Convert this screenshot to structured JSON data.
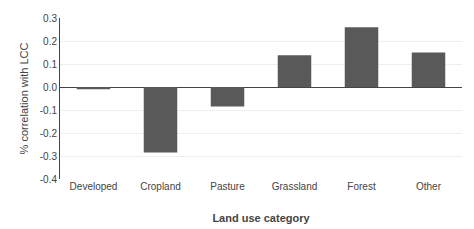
{
  "chart_data": {
    "type": "bar",
    "categories": [
      "Developed",
      "Cropland",
      "Pasture",
      "Grassland",
      "Forest",
      "Other"
    ],
    "values": [
      -0.01,
      -0.285,
      -0.085,
      0.138,
      0.26,
      0.15
    ],
    "color": "#595959",
    "xlabel": "Land use category",
    "ylabel": "% correlation with LCC",
    "ylim": [
      -0.4,
      0.3
    ],
    "yticks": [
      -0.4,
      -0.3,
      -0.2,
      -0.1,
      {
        "value": 0,
        "label": "0.0"
      },
      0.1,
      0.2,
      0.3
    ],
    "grid": true
  }
}
